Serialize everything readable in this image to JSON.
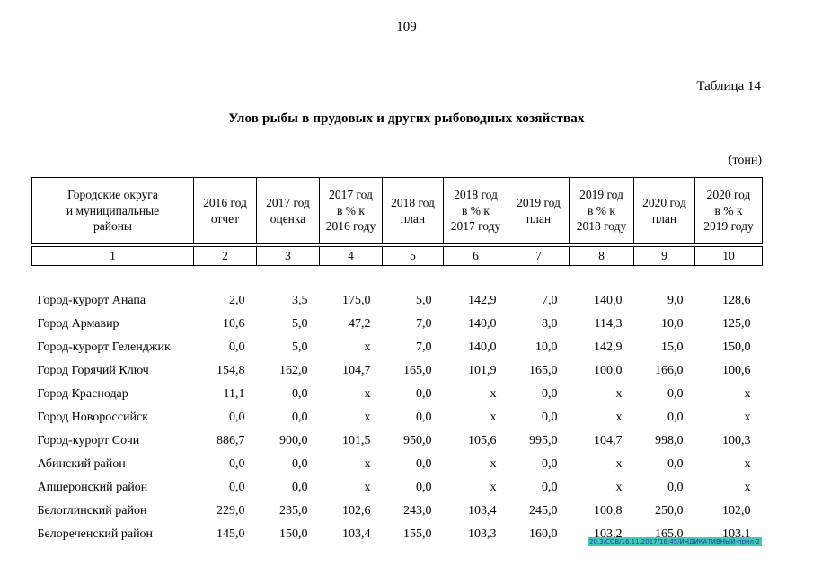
{
  "page": {
    "number": "109",
    "table_label": "Таблица 14",
    "title": "Улов рыбы в прудовых и других рыбоводных хозяйствах",
    "units": "(тонн)",
    "footer_stamp": "20.3/СОВ/16.11.2017/16:45/ИНДИКАТИВНЫЙ-прил-2"
  },
  "table": {
    "headers": [
      "Городские округа\nи муниципальные\nрайоны",
      "2016 год\nотчет",
      "2017 год\nоценка",
      "2017 год\nв % к\n2016 году",
      "2018 год\nплан",
      "2018 год\nв % к\n2017 году",
      "2019 год\nплан",
      "2019 год\nв % к\n2018 году",
      "2020 год\nплан",
      "2020 год\nв % к\n2019 году"
    ],
    "column_numbers": [
      "1",
      "2",
      "3",
      "4",
      "5",
      "6",
      "7",
      "8",
      "9",
      "10"
    ],
    "rows": [
      {
        "name": "Город-курорт Анапа",
        "values": [
          "2,0",
          "3,5",
          "175,0",
          "5,0",
          "142,9",
          "7,0",
          "140,0",
          "9,0",
          "128,6"
        ]
      },
      {
        "name": "Город Армавир",
        "values": [
          "10,6",
          "5,0",
          "47,2",
          "7,0",
          "140,0",
          "8,0",
          "114,3",
          "10,0",
          "125,0"
        ]
      },
      {
        "name": "Город-курорт Геленджик",
        "values": [
          "0,0",
          "5,0",
          "x",
          "7,0",
          "140,0",
          "10,0",
          "142,9",
          "15,0",
          "150,0"
        ]
      },
      {
        "name": "Город Горячий Ключ",
        "values": [
          "154,8",
          "162,0",
          "104,7",
          "165,0",
          "101,9",
          "165,0",
          "100,0",
          "166,0",
          "100,6"
        ]
      },
      {
        "name": "Город Краснодар",
        "values": [
          "11,1",
          "0,0",
          "x",
          "0,0",
          "x",
          "0,0",
          "x",
          "0,0",
          "x"
        ]
      },
      {
        "name": "Город Новороссийск",
        "values": [
          "0,0",
          "0,0",
          "x",
          "0,0",
          "x",
          "0,0",
          "x",
          "0,0",
          "x"
        ]
      },
      {
        "name": "Город-курорт Сочи",
        "values": [
          "886,7",
          "900,0",
          "101,5",
          "950,0",
          "105,6",
          "995,0",
          "104,7",
          "998,0",
          "100,3"
        ]
      },
      {
        "name": "Абинский район",
        "values": [
          "0,0",
          "0,0",
          "x",
          "0,0",
          "x",
          "0,0",
          "x",
          "0,0",
          "x"
        ]
      },
      {
        "name": "Апшеронский район",
        "values": [
          "0,0",
          "0,0",
          "x",
          "0,0",
          "x",
          "0,0",
          "x",
          "0,0",
          "x"
        ]
      },
      {
        "name": "Белоглинский район",
        "values": [
          "229,0",
          "235,0",
          "102,6",
          "243,0",
          "103,4",
          "245,0",
          "100,8",
          "250,0",
          "102,0"
        ]
      },
      {
        "name": "Белореченский район",
        "values": [
          "145,0",
          "150,0",
          "103,4",
          "155,0",
          "103,3",
          "160,0",
          "103,2",
          "165,0",
          "103,1"
        ]
      }
    ]
  }
}
